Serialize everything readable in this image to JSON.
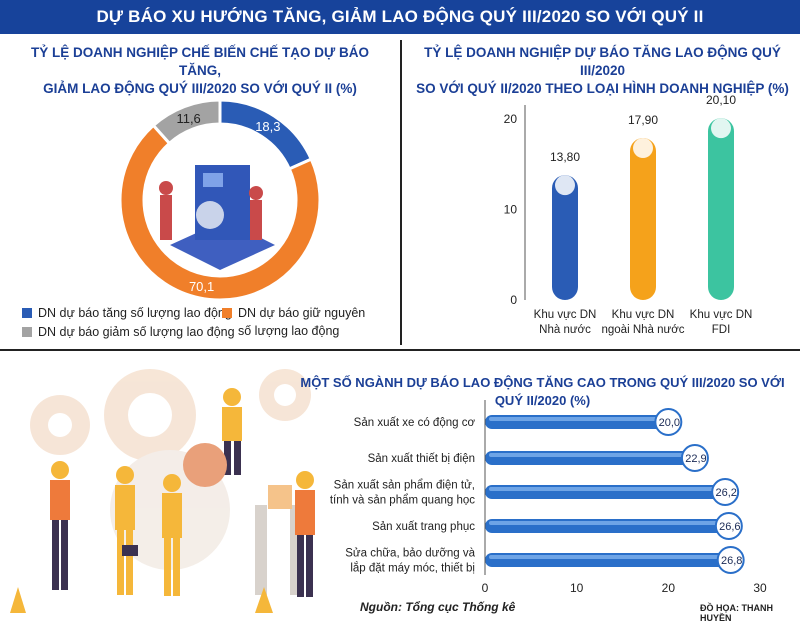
{
  "banner": {
    "title": "DỰ BÁO XU HƯỚNG TĂNG, GIẢM LAO ĐỘNG QUÝ III/2020 SO VỚI QUÝ II"
  },
  "colors": {
    "blue": "#2a5cb5",
    "orange": "#f07f2a",
    "gray": "#a3a3a3",
    "navy": "#17439b"
  },
  "chart_data": [
    {
      "type": "pie",
      "title": "TỶ LỆ DOANH NGHIỆP CHẾ BIẾN CHẾ TẠO DỰ BÁO TĂNG, GIẢM LAO ĐỘNG QUÝ III/2020 SO VỚI QUÝ II (%)",
      "title_line1": "TỶ LỆ DOANH NGHIỆP CHẾ BIẾN CHẾ TẠO DỰ BÁO TĂNG,",
      "title_line2": "GIẢM LAO ĐỘNG QUÝ III/2020 SO VỚI QUÝ II (%)",
      "slices": [
        {
          "label": "DN dự báo tăng số lượng lao động",
          "value": 18.3,
          "value_label": "18,3",
          "color": "#2a5cb5"
        },
        {
          "label": "DN dự báo giữ nguyên số lượng lao động",
          "label_line1": "DN dự báo giữ nguyên",
          "label_line2": "số lượng lao động",
          "value": 70.1,
          "value_label": "70,1",
          "color": "#f07f2a"
        },
        {
          "label": "DN dự báo giảm số lượng lao động",
          "value": 11.6,
          "value_label": "11,6",
          "color": "#a3a3a3"
        }
      ]
    },
    {
      "type": "bar",
      "title": "TỶ LỆ DOANH NGHIỆP DỰ BÁO TĂNG LAO ĐỘNG QUÝ III/2020 SO VỚI QUÝ II/2020 THEO LOẠI HÌNH DOANH NGHIỆP (%)",
      "title_line1": "TỶ LỆ DOANH NGHIỆP DỰ BÁO TĂNG LAO ĐỘNG QUÝ III/2020",
      "title_line2": "SO VỚI QUÝ II/2020 THEO LOẠI HÌNH DOANH NGHIỆP (%)",
      "categories": [
        "Khu vực DN Nhà nước",
        "Khu vực DN ngoài Nhà nước",
        "Khu vực DN FDI"
      ],
      "category_lines": [
        [
          "Khu vực DN",
          "Nhà nước"
        ],
        [
          "Khu vực DN",
          "ngoài Nhà nước"
        ],
        [
          "Khu vực DN",
          "FDI"
        ]
      ],
      "values": [
        13.8,
        17.9,
        20.1
      ],
      "value_labels": [
        "13,80",
        "17,90",
        "20,10"
      ],
      "colors": [
        "#2a5cb5",
        "#f5a21b",
        "#3cc4a0"
      ],
      "yticks": [
        "0",
        "10",
        "20"
      ],
      "ylim": [
        0,
        21
      ]
    },
    {
      "type": "bar",
      "orientation": "horizontal",
      "title": "MỘT SỐ NGÀNH DỰ BÁO LAO ĐỘNG TĂNG CAO TRONG QUÝ III/2020 SO VỚI QUÝ II/2020 (%)",
      "categories": [
        "Sản xuất xe có động cơ",
        "Sản xuất thiết bị điện",
        "Sản xuất sản phẩm điện tử, máy tính và sản phẩm quang học",
        "Sản xuất trang phục",
        "Sửa chữa, bảo dưỡng và lắp đặt máy móc, thiết bị"
      ],
      "category_lines": [
        [
          "Sản xuất xe có động cơ"
        ],
        [
          "Sản xuất thiết bị điện"
        ],
        [
          "Sản xuất sản phẩm điện tử,",
          "máy tính và sản phẩm quang học"
        ],
        [
          "Sản xuất trang phục"
        ],
        [
          "Sửa chữa, bảo dưỡng và",
          "lắp đặt máy móc, thiết bị"
        ]
      ],
      "values": [
        20.0,
        22.9,
        26.2,
        26.6,
        26.8
      ],
      "value_labels": [
        "20,0",
        "22,9",
        "26,2",
        "26,6",
        "26,8"
      ],
      "xticks": [
        "0",
        "10",
        "20",
        "30"
      ],
      "xlim": [
        0,
        30
      ],
      "color": "#2a6fc9"
    }
  ],
  "source": "Nguồn: Tổng cục Thống kê",
  "credit": "ĐỒ HỌA: THANH HUYỀN"
}
